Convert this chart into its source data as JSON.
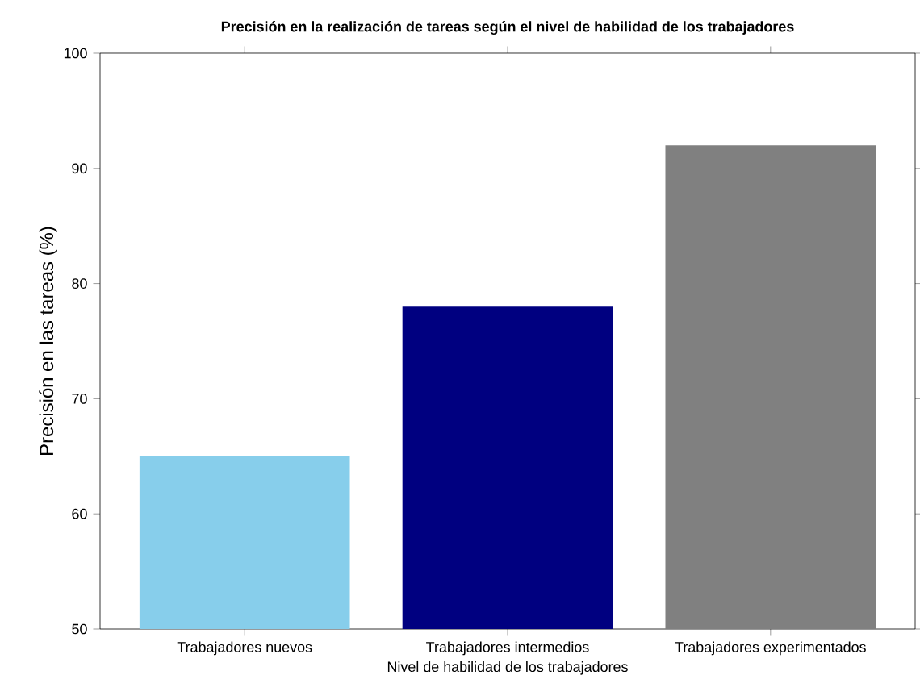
{
  "chart_data": {
    "type": "bar",
    "title": "Precisión en la realización de tareas según el nivel de habilidad de los trabajadores",
    "xlabel": "Nivel de habilidad de los trabajadores",
    "ylabel": "Precisión en las tareas (%)",
    "categories": [
      "Trabajadores nuevos",
      "Trabajadores intermedios",
      "Trabajadores experimentados"
    ],
    "values": [
      65,
      78,
      92
    ],
    "colors": [
      "#87ceeb",
      "#000080",
      "#808080"
    ],
    "ylim": [
      50,
      100
    ],
    "yticks": [
      50,
      60,
      70,
      80,
      90,
      100
    ],
    "grid": false
  }
}
